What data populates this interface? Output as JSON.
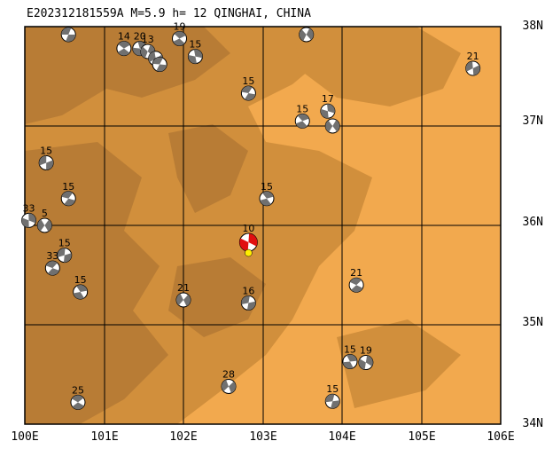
{
  "header": {
    "title": "E20231218155​9A M=5.9 h= 12 QINGHAI, CHINA"
  },
  "map": {
    "lat_labels": [
      "38N",
      "37N",
      "36N",
      "35N",
      "34N"
    ],
    "lon_labels": [
      "100E",
      "101E",
      "102E",
      "103E",
      "104E",
      "105E",
      "106E"
    ],
    "colors": {
      "dark": "#b87c35",
      "mid": "#d18f3c",
      "light": "#f2a94e",
      "grid": "#000000",
      "mainshock": "#e01010",
      "epicenter": "#ffee00",
      "mechanism_dark": "#707070"
    },
    "events": [
      {
        "lon": 100.55,
        "lat": 37.92,
        "depth": "",
        "main": false
      },
      {
        "lon": 101.25,
        "lat": 37.78,
        "depth": "14",
        "main": false
      },
      {
        "lon": 101.45,
        "lat": 37.78,
        "depth": "20",
        "main": false
      },
      {
        "lon": 101.55,
        "lat": 37.75,
        "depth": "13",
        "main": false
      },
      {
        "lon": 101.65,
        "lat": 37.68,
        "depth": "",
        "main": false
      },
      {
        "lon": 101.7,
        "lat": 37.62,
        "depth": "",
        "main": false
      },
      {
        "lon": 101.95,
        "lat": 37.88,
        "depth": "19",
        "main": false
      },
      {
        "lon": 102.15,
        "lat": 37.7,
        "depth": "15",
        "main": false
      },
      {
        "lon": 103.55,
        "lat": 37.92,
        "depth": "",
        "main": false
      },
      {
        "lon": 105.65,
        "lat": 37.58,
        "depth": "21",
        "main": false
      },
      {
        "lon": 102.82,
        "lat": 37.33,
        "depth": "15",
        "main": false
      },
      {
        "lon": 103.5,
        "lat": 37.05,
        "depth": "15",
        "main": false
      },
      {
        "lon": 103.82,
        "lat": 37.15,
        "depth": "17",
        "main": false
      },
      {
        "lon": 103.88,
        "lat": 37.0,
        "depth": "",
        "main": false
      },
      {
        "lon": 100.27,
        "lat": 36.63,
        "depth": "15",
        "main": false
      },
      {
        "lon": 100.55,
        "lat": 36.27,
        "depth": "15",
        "main": false
      },
      {
        "lon": 103.05,
        "lat": 36.27,
        "depth": "15",
        "main": false
      },
      {
        "lon": 100.05,
        "lat": 36.05,
        "depth": "33",
        "main": false
      },
      {
        "lon": 100.25,
        "lat": 36.0,
        "depth": "5",
        "main": false
      },
      {
        "lon": 100.5,
        "lat": 35.7,
        "depth": "15",
        "main": false
      },
      {
        "lon": 100.35,
        "lat": 35.57,
        "depth": "33",
        "main": false
      },
      {
        "lon": 100.7,
        "lat": 35.33,
        "depth": "15",
        "main": false
      },
      {
        "lon": 102.82,
        "lat": 35.83,
        "depth": "10",
        "main": true
      },
      {
        "lon": 102.0,
        "lat": 35.25,
        "depth": "21",
        "main": false
      },
      {
        "lon": 102.82,
        "lat": 35.22,
        "depth": "16",
        "main": false
      },
      {
        "lon": 104.18,
        "lat": 35.4,
        "depth": "21",
        "main": false
      },
      {
        "lon": 104.1,
        "lat": 34.63,
        "depth": "15",
        "main": false
      },
      {
        "lon": 104.3,
        "lat": 34.62,
        "depth": "19",
        "main": false
      },
      {
        "lon": 102.57,
        "lat": 34.38,
        "depth": "28",
        "main": false
      },
      {
        "lon": 103.88,
        "lat": 34.23,
        "depth": "15",
        "main": false
      },
      {
        "lon": 100.67,
        "lat": 34.22,
        "depth": "25",
        "main": false
      }
    ]
  }
}
